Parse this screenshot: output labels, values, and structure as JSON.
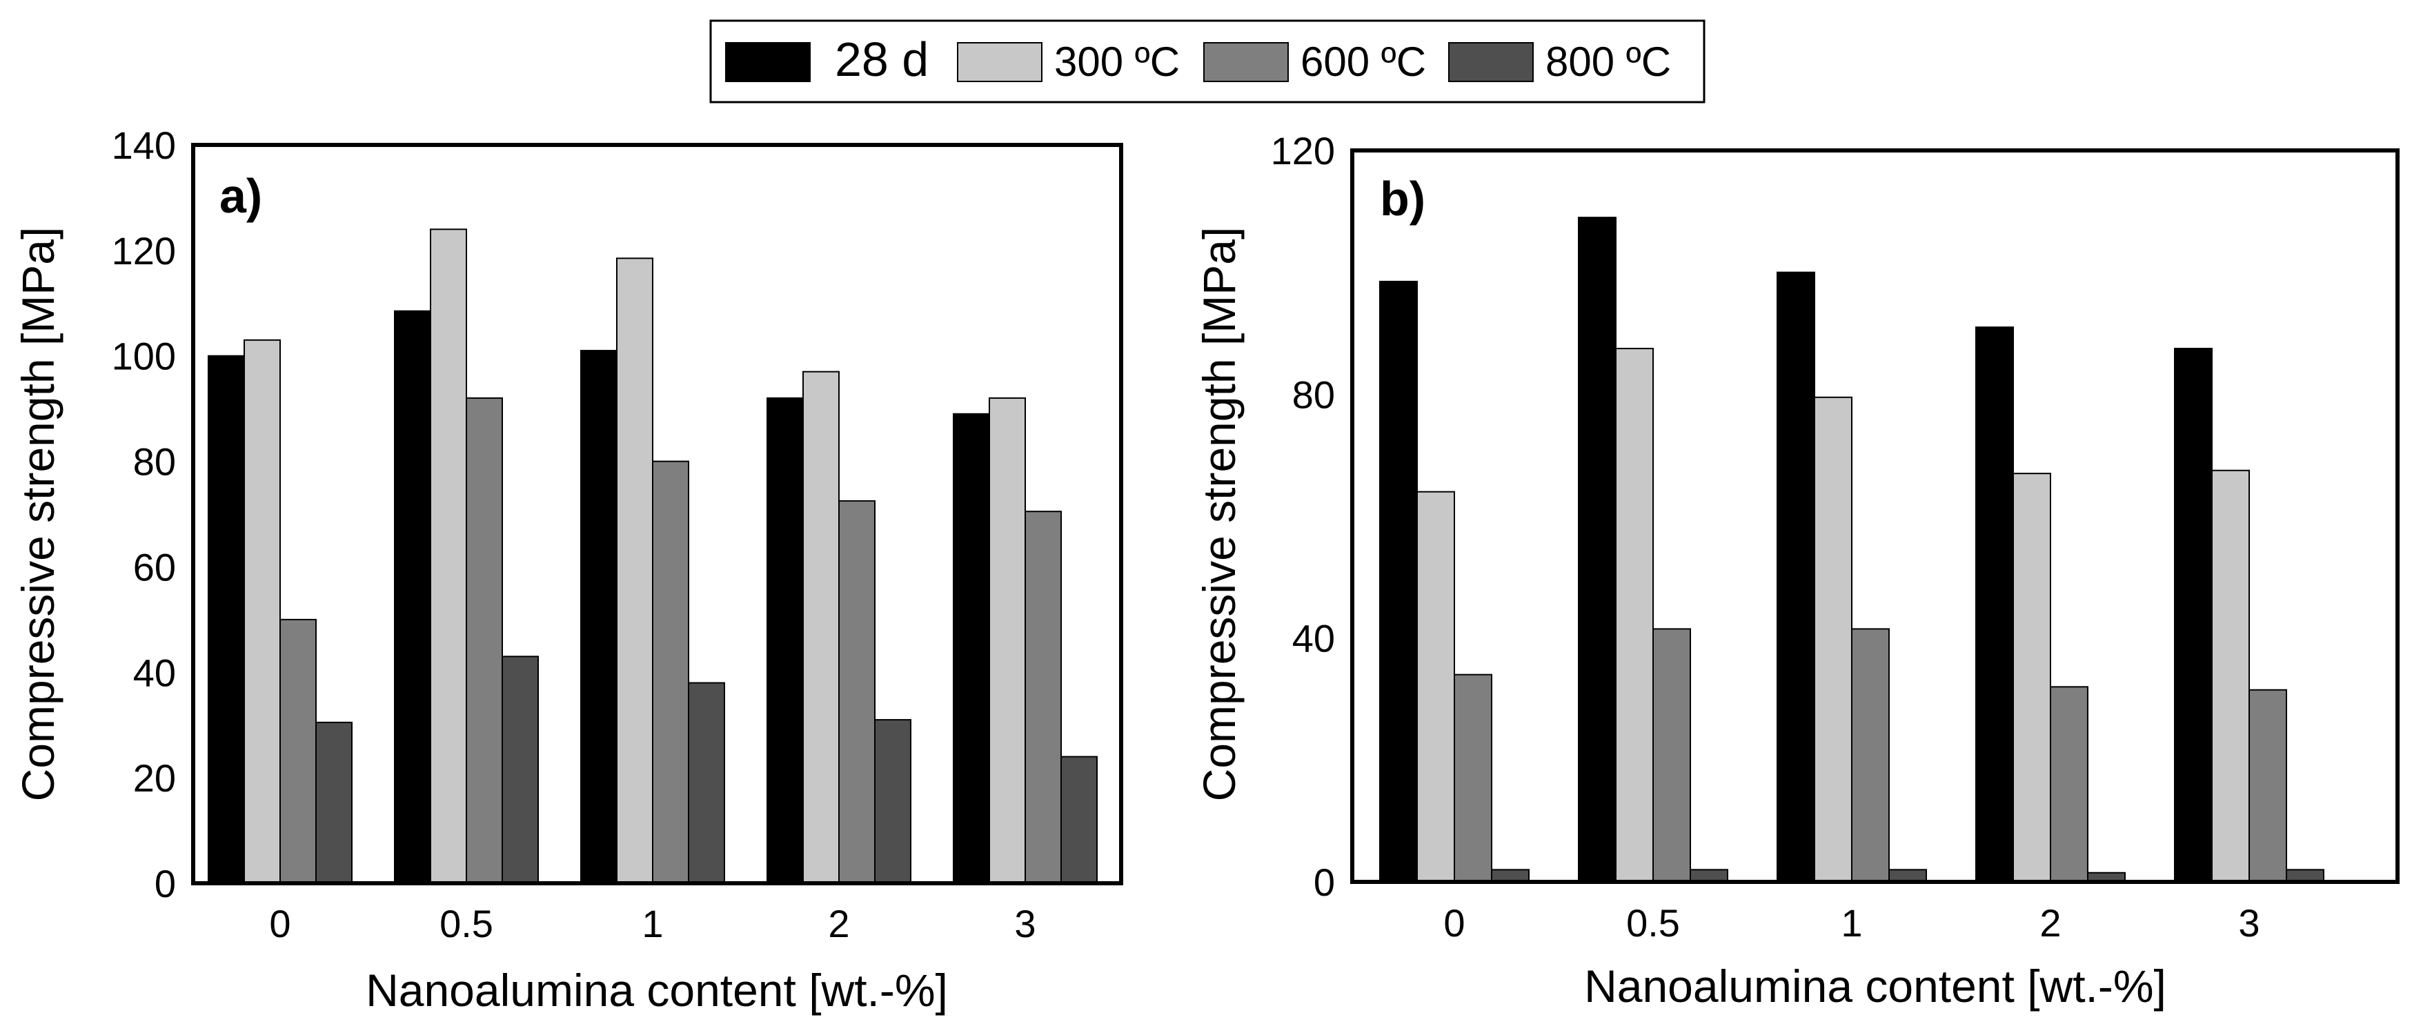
{
  "legend": {
    "entries": [
      {
        "label": "28 d",
        "color": "#000000"
      },
      {
        "label": "300 ºC",
        "color": "#c8c8c8"
      },
      {
        "label": "600 ºC",
        "color": "#7f7f7f"
      },
      {
        "label": "800 ºC",
        "color": "#4f4f4f"
      }
    ]
  },
  "chart_data": [
    {
      "type": "bar",
      "panel_label": "a)",
      "xlabel": "Nanoalumina content [wt.-%]",
      "ylabel": "Compressive strength [MPa]",
      "ylim": [
        0,
        140
      ],
      "yticks": [
        0,
        20,
        40,
        60,
        80,
        100,
        120,
        140
      ],
      "categories": [
        "0",
        "0.5",
        "1",
        "2",
        "3"
      ],
      "series": [
        {
          "name": "28 d",
          "values": [
            100,
            108.5,
            101,
            92,
            89
          ]
        },
        {
          "name": "300 ºC",
          "values": [
            103,
            124,
            118.5,
            97,
            92
          ]
        },
        {
          "name": "600 ºC",
          "values": [
            50,
            92,
            80,
            72.5,
            70.5
          ]
        },
        {
          "name": "800 ºC",
          "values": [
            30.5,
            43,
            38,
            31,
            24
          ]
        }
      ]
    },
    {
      "type": "bar",
      "panel_label": "b)",
      "xlabel": "Nanoalumina content [wt.-%]",
      "ylabel": "Compressive strength [MPa]",
      "ylim": [
        0,
        120
      ],
      "yticks": [
        0,
        40,
        80,
        120
      ],
      "categories": [
        "0",
        "0.5",
        "1",
        "2",
        "3"
      ],
      "series": [
        {
          "name": "28 d",
          "values": [
            98.5,
            109,
            100,
            91,
            87.5
          ]
        },
        {
          "name": "300 ºC",
          "values": [
            64,
            87.5,
            79.5,
            67,
            67.5
          ]
        },
        {
          "name": "600 ºC",
          "values": [
            34,
            41.5,
            41.5,
            32,
            31.5
          ]
        },
        {
          "name": "800 ºC",
          "values": [
            2,
            2,
            2,
            1.5,
            2
          ]
        }
      ]
    }
  ]
}
